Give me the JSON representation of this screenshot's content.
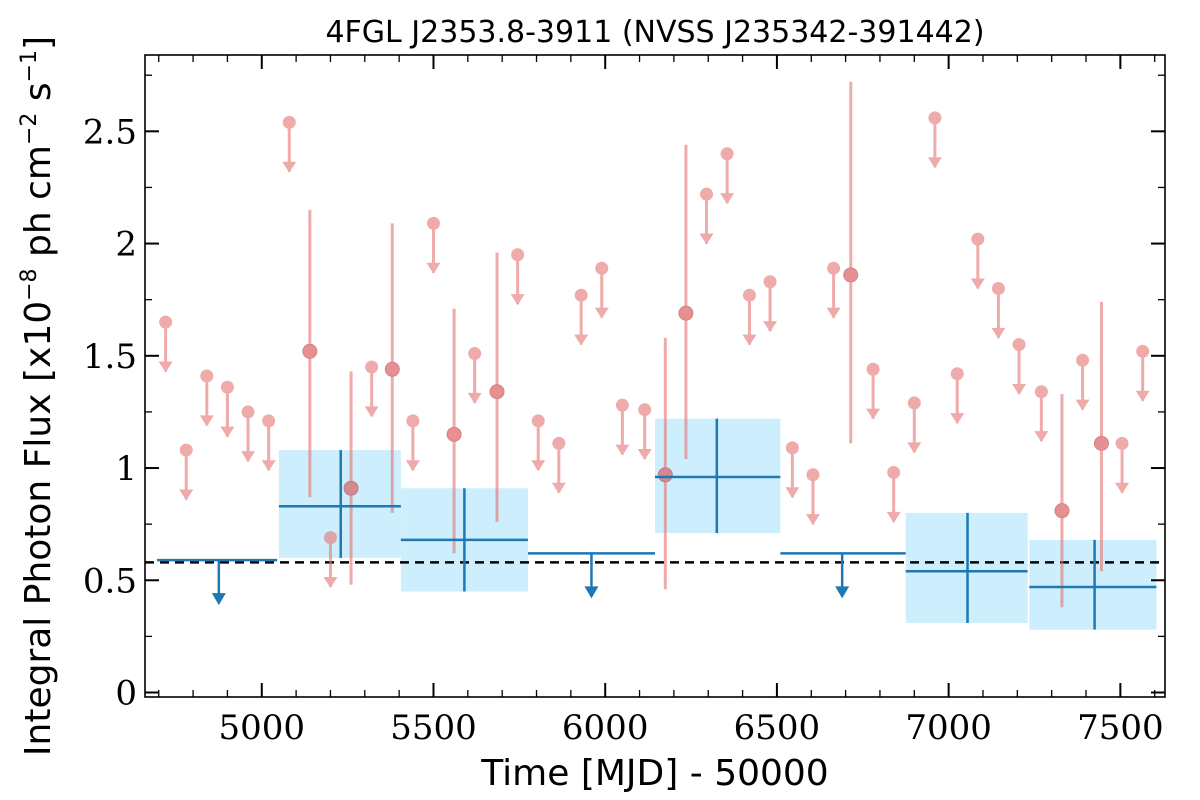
{
  "chart_data": {
    "type": "scatter",
    "title": "4FGL J2353.8-3911 (NVSS J235342-391442)",
    "xlabel": "Time [MJD] - 50000",
    "ylabel": "Integral Photon Flux [x10",
    "ylabel_sup1": "−8",
    "ylabel_mid": " ph cm",
    "ylabel_sup2": "−2",
    "ylabel_end": " s",
    "ylabel_sup3": "−1",
    "ylabel_close": "]",
    "xlim": [
      4660,
      7630
    ],
    "ylim": [
      -0.02,
      2.84
    ],
    "x_ticks": [
      5000,
      5500,
      6000,
      6500,
      7000,
      7500
    ],
    "x_tick_labels": [
      "5000",
      "5500",
      "6000",
      "6500",
      "7000",
      "7500"
    ],
    "y_ticks": [
      0,
      0.5,
      1,
      1.5,
      2,
      2.5
    ],
    "y_tick_labels": [
      "0",
      "0.5",
      "1",
      "1.5",
      "2",
      "2.5"
    ],
    "reference_line": {
      "y": 0.58,
      "style": "dashed",
      "color": "#000000"
    },
    "colors": {
      "fine_marker": "#e57373",
      "coarse_line": "#1f77b4",
      "coarse_fill": "#cdeefc"
    },
    "series": [
      {
        "role": "fine-bin-detections",
        "points": [
          {
            "x": 5140,
            "y": 1.52,
            "ylo": 0.87,
            "yhi": 2.15
          },
          {
            "x": 5260,
            "y": 0.91,
            "ylo": 0.48,
            "yhi": 1.43
          },
          {
            "x": 5380,
            "y": 1.44,
            "ylo": 0.8,
            "yhi": 2.09
          },
          {
            "x": 5560,
            "y": 1.15,
            "ylo": 0.62,
            "yhi": 1.71
          },
          {
            "x": 5685,
            "y": 1.34,
            "ylo": 0.76,
            "yhi": 1.96
          },
          {
            "x": 6175,
            "y": 0.97,
            "ylo": 0.46,
            "yhi": 1.58
          },
          {
            "x": 6235,
            "y": 1.69,
            "ylo": 1.04,
            "yhi": 2.44
          },
          {
            "x": 6715,
            "y": 1.86,
            "ylo": 1.11,
            "yhi": 2.72
          },
          {
            "x": 7330,
            "y": 0.81,
            "ylo": 0.38,
            "yhi": 1.33
          },
          {
            "x": 7445,
            "y": 1.11,
            "ylo": 0.54,
            "yhi": 1.74
          }
        ]
      },
      {
        "role": "fine-bin-upper-limits",
        "points": [
          {
            "x": 4720,
            "y": 1.65
          },
          {
            "x": 4780,
            "y": 1.08
          },
          {
            "x": 4840,
            "y": 1.41
          },
          {
            "x": 4900,
            "y": 1.36
          },
          {
            "x": 4960,
            "y": 1.25
          },
          {
            "x": 5020,
            "y": 1.21
          },
          {
            "x": 5080,
            "y": 2.54
          },
          {
            "x": 5200,
            "y": 0.69
          },
          {
            "x": 5320,
            "y": 1.45
          },
          {
            "x": 5440,
            "y": 1.21
          },
          {
            "x": 5500,
            "y": 2.09
          },
          {
            "x": 5620,
            "y": 1.51
          },
          {
            "x": 5745,
            "y": 1.95
          },
          {
            "x": 5805,
            "y": 1.21
          },
          {
            "x": 5865,
            "y": 1.11
          },
          {
            "x": 5930,
            "y": 1.77
          },
          {
            "x": 5990,
            "y": 1.89
          },
          {
            "x": 6050,
            "y": 1.28
          },
          {
            "x": 6115,
            "y": 1.26
          },
          {
            "x": 6295,
            "y": 2.22
          },
          {
            "x": 6355,
            "y": 2.4
          },
          {
            "x": 6420,
            "y": 1.77
          },
          {
            "x": 6480,
            "y": 1.83
          },
          {
            "x": 6545,
            "y": 1.09
          },
          {
            "x": 6605,
            "y": 0.97
          },
          {
            "x": 6665,
            "y": 1.89
          },
          {
            "x": 6780,
            "y": 1.44
          },
          {
            "x": 6840,
            "y": 0.98
          },
          {
            "x": 6900,
            "y": 1.29
          },
          {
            "x": 6960,
            "y": 2.56
          },
          {
            "x": 7025,
            "y": 1.42
          },
          {
            "x": 7085,
            "y": 2.02
          },
          {
            "x": 7145,
            "y": 1.8
          },
          {
            "x": 7205,
            "y": 1.55
          },
          {
            "x": 7270,
            "y": 1.34
          },
          {
            "x": 7390,
            "y": 1.48
          },
          {
            "x": 7505,
            "y": 1.11
          },
          {
            "x": 7565,
            "y": 1.52
          }
        ]
      },
      {
        "role": "coarse-bin-detections",
        "points": [
          {
            "x": 5230,
            "y": 0.83,
            "xlo": 5050,
            "xhi": 5405,
            "ylo": 0.6,
            "yhi": 1.08
          },
          {
            "x": 5590,
            "y": 0.68,
            "xlo": 5405,
            "xhi": 5775,
            "ylo": 0.45,
            "yhi": 0.91
          },
          {
            "x": 6325,
            "y": 0.96,
            "xlo": 6145,
            "xhi": 6510,
            "ylo": 0.71,
            "yhi": 1.22
          },
          {
            "x": 7055,
            "y": 0.54,
            "xlo": 6875,
            "xhi": 7230,
            "ylo": 0.31,
            "yhi": 0.8
          },
          {
            "x": 7425,
            "y": 0.47,
            "xlo": 7235,
            "xhi": 7605,
            "ylo": 0.28,
            "yhi": 0.68
          }
        ]
      },
      {
        "role": "coarse-bin-upper-limits",
        "points": [
          {
            "x": 4875,
            "y": 0.59,
            "xlo": 4695,
            "xhi": 5045
          },
          {
            "x": 5960,
            "y": 0.62,
            "xlo": 5775,
            "xhi": 6145
          },
          {
            "x": 6690,
            "y": 0.62,
            "xlo": 6510,
            "xhi": 6875
          }
        ]
      }
    ]
  }
}
